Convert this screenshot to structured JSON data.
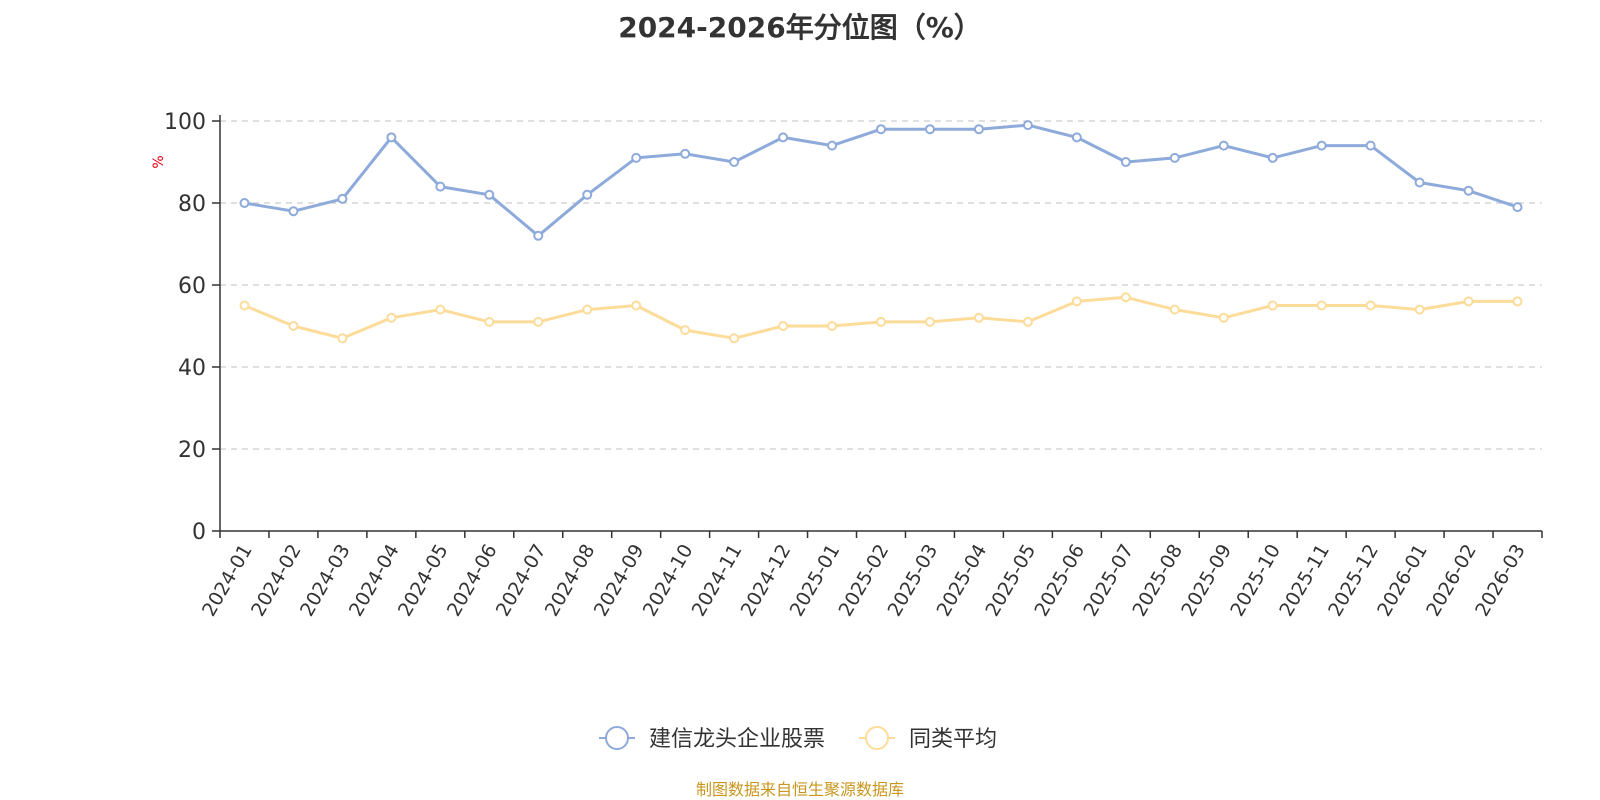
{
  "chart_data": {
    "type": "line",
    "title": "2024-2026年分位图（%）",
    "ylabel": "%",
    "ylim": [
      0,
      100
    ],
    "yticks": [
      0,
      20,
      40,
      60,
      80,
      100
    ],
    "grid": true,
    "legend_position": "bottom",
    "categories": [
      "2024-01",
      "2024-02",
      "2024-03",
      "2024-04",
      "2024-05",
      "2024-06",
      "2024-07",
      "2024-08",
      "2024-09",
      "2024-10",
      "2024-11",
      "2024-12",
      "2025-01",
      "2025-02",
      "2025-03",
      "2025-04",
      "2025-05",
      "2025-06",
      "2025-07",
      "2025-08",
      "2025-09",
      "2025-10",
      "2025-11",
      "2025-12",
      "2026-01",
      "2026-02",
      "2026-03"
    ],
    "series": [
      {
        "name": "建信龙头企业股票",
        "color": "#8eaadb",
        "values": [
          80,
          78,
          81,
          96,
          84,
          82,
          72,
          82,
          91,
          92,
          90,
          96,
          94,
          98,
          98,
          98,
          99,
          96,
          90,
          91,
          94,
          91,
          94,
          94,
          85,
          83,
          79
        ]
      },
      {
        "name": "同类平均",
        "color": "#fddc9a",
        "values": [
          55,
          50,
          47,
          52,
          54,
          51,
          51,
          54,
          55,
          49,
          47,
          50,
          50,
          51,
          51,
          52,
          51,
          56,
          57,
          54,
          52,
          55,
          55,
          55,
          54,
          56,
          56
        ]
      }
    ]
  },
  "source": "制图数据来自恒生聚源数据库"
}
